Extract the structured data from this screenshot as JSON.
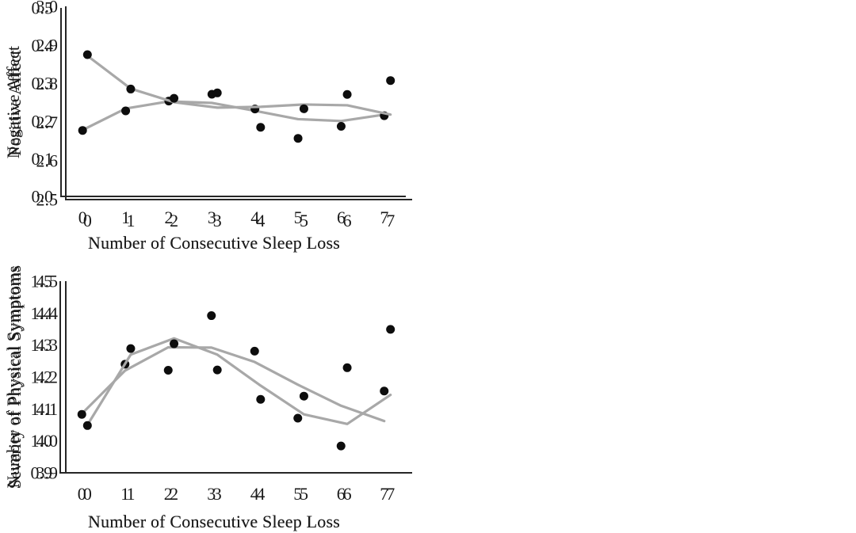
{
  "figure": {
    "kind": "2x2 panel scatter plots with fitted trend lines",
    "background": "#ffffff"
  },
  "colors": {
    "dot": "#0d0d0d",
    "fit_line": "#a8a8a8",
    "axis": "#262626",
    "text": "#1a1a1a"
  },
  "chart_data": [
    {
      "type": "scatter",
      "ylabel": "Negative Affect",
      "xlabel": "Number of Consecutive Sleep Loss",
      "categories": [
        0,
        1,
        2,
        3,
        4,
        5,
        6,
        7
      ],
      "x_tick_labels": [
        "0",
        "1",
        "2",
        "3",
        "4",
        "5",
        "6",
        "7"
      ],
      "ylim": [
        0.0,
        0.5
      ],
      "y_tick_labels": [
        "0.0",
        "0.1",
        "0.2",
        "0.3",
        "0.4",
        "0.5"
      ],
      "grid": false,
      "legend": "none",
      "series": [
        {
          "name": "observed-means",
          "style": "points",
          "values": [
            0.175,
            0.227,
            0.253,
            0.271,
            0.232,
            0.154,
            0.186,
            0.214
          ]
        },
        {
          "name": "fitted-curve",
          "style": "line",
          "values": [
            0.176,
            0.233,
            0.252,
            0.248,
            0.227,
            0.205,
            0.2,
            0.217
          ]
        }
      ]
    },
    {
      "type": "scatter",
      "ylabel": "Positive Affect",
      "xlabel": "Number of Consecutive Sleep Loss",
      "categories": [
        0,
        1,
        2,
        3,
        4,
        5,
        6,
        7
      ],
      "x_tick_labels": [
        "0",
        "1",
        "2",
        "3",
        "4",
        "5",
        "6",
        "7"
      ],
      "ylim": [
        2.5,
        3.0
      ],
      "y_tick_labels": [
        "2.5",
        "2.6",
        "2.7",
        "2.8",
        "2.9",
        "3.0"
      ],
      "grid": false,
      "legend": "none",
      "series": [
        {
          "name": "observed-means",
          "style": "points",
          "values": [
            2.875,
            2.786,
            2.762,
            2.776,
            2.687,
            2.735,
            2.772,
            2.808
          ]
        },
        {
          "name": "fitted-curve",
          "style": "line",
          "values": [
            2.872,
            2.787,
            2.752,
            2.738,
            2.74,
            2.746,
            2.744,
            2.72
          ]
        }
      ]
    },
    {
      "type": "scatter",
      "ylabel": "Number of Physical Symptoms",
      "xlabel": "Number of Consecutive Sleep Loss",
      "categories": [
        0,
        1,
        2,
        3,
        4,
        5,
        6,
        7
      ],
      "x_tick_labels": [
        "0",
        "1",
        "2",
        "3",
        "4",
        "5",
        "6",
        "7"
      ],
      "ylim": [
        0.9,
        1.5
      ],
      "y_tick_labels": [
        "0.9",
        "1.0",
        "1.1",
        "1.2",
        "1.3",
        "1.4",
        "1.5"
      ],
      "grid": false,
      "legend": "none",
      "series": [
        {
          "name": "observed-means",
          "style": "points",
          "values": [
            1.083,
            1.24,
            1.221,
            1.392,
            1.281,
            1.071,
            0.984,
            1.156
          ]
        },
        {
          "name": "fitted-curve",
          "style": "line",
          "values": [
            1.085,
            1.22,
            1.293,
            1.292,
            1.247,
            1.176,
            1.11,
            1.062
          ]
        }
      ]
    },
    {
      "type": "scatter",
      "ylabel": "Severity of Physical Symptoms",
      "xlabel": "Number of Consecutive Sleep Loss",
      "categories": [
        0,
        1,
        2,
        3,
        4,
        5,
        6,
        7
      ],
      "x_tick_labels": [
        "0",
        "1",
        "2",
        "3",
        "4",
        "5",
        "6",
        "7"
      ],
      "ylim": [
        3.9,
        4.5
      ],
      "y_tick_labels": [
        "3.9",
        "4.0",
        "4.1",
        "4.2",
        "4.3",
        "4.4",
        "4.5"
      ],
      "grid": false,
      "legend": "none",
      "series": [
        {
          "name": "observed-means",
          "style": "points",
          "values": [
            4.048,
            4.289,
            4.304,
            4.222,
            4.13,
            4.14,
            4.229,
            4.349
          ]
        },
        {
          "name": "fitted-curve",
          "style": "line",
          "values": [
            4.05,
            4.27,
            4.321,
            4.27,
            4.173,
            4.083,
            4.053,
            4.144
          ]
        }
      ]
    }
  ]
}
